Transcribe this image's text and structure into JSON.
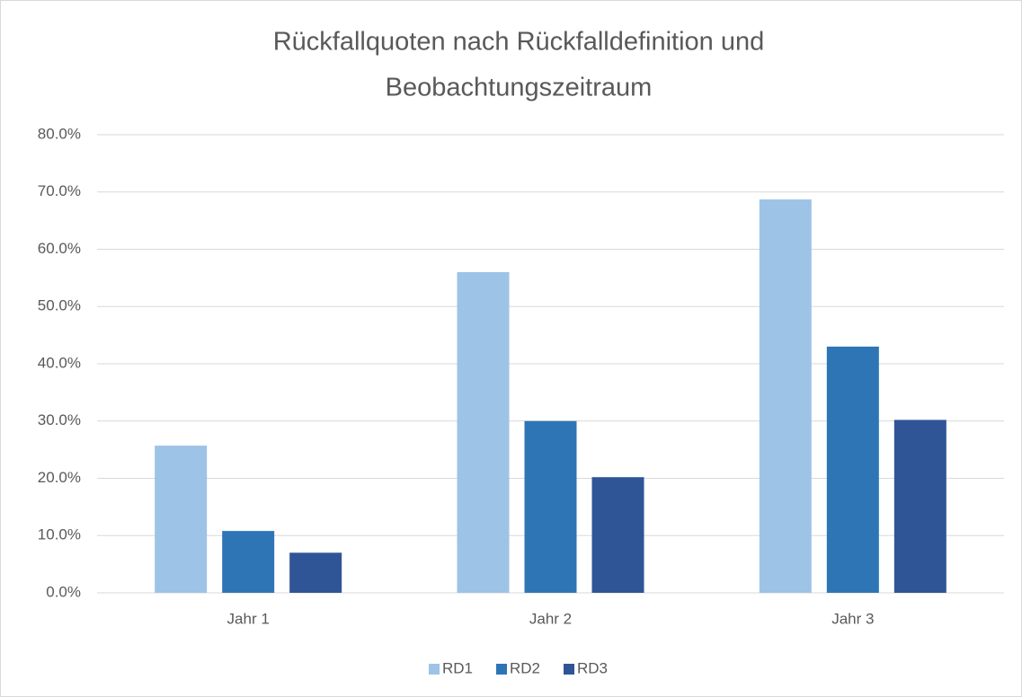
{
  "chart_data": {
    "type": "bar",
    "title": [
      "Rückfallquoten nach Rückfalldefinition und",
      "Beobachtungszeitraum"
    ],
    "categories": [
      "Jahr 1",
      "Jahr 2",
      "Jahr 3"
    ],
    "series": [
      {
        "name": "RD1",
        "color": "#9dc3e6",
        "values": [
          25.7,
          56.0,
          68.7
        ]
      },
      {
        "name": "RD2",
        "color": "#2e75b6",
        "values": [
          10.8,
          30.0,
          43.0
        ]
      },
      {
        "name": "RD3",
        "color": "#2f5597",
        "values": [
          7.0,
          20.2,
          30.2
        ]
      }
    ],
    "ylim": [
      0,
      80
    ],
    "yticks": [
      {
        "value": 0,
        "label": "0.0%"
      },
      {
        "value": 10,
        "label": "10.0%"
      },
      {
        "value": 20,
        "label": "20.0%"
      },
      {
        "value": 30,
        "label": "30.0%"
      },
      {
        "value": 40,
        "label": "40.0%"
      },
      {
        "value": 50,
        "label": "50.0%"
      },
      {
        "value": 60,
        "label": "60.0%"
      },
      {
        "value": 70,
        "label": "70.0%"
      },
      {
        "value": 80,
        "label": "80.0%"
      }
    ],
    "grid": true,
    "legend": "bottom"
  }
}
